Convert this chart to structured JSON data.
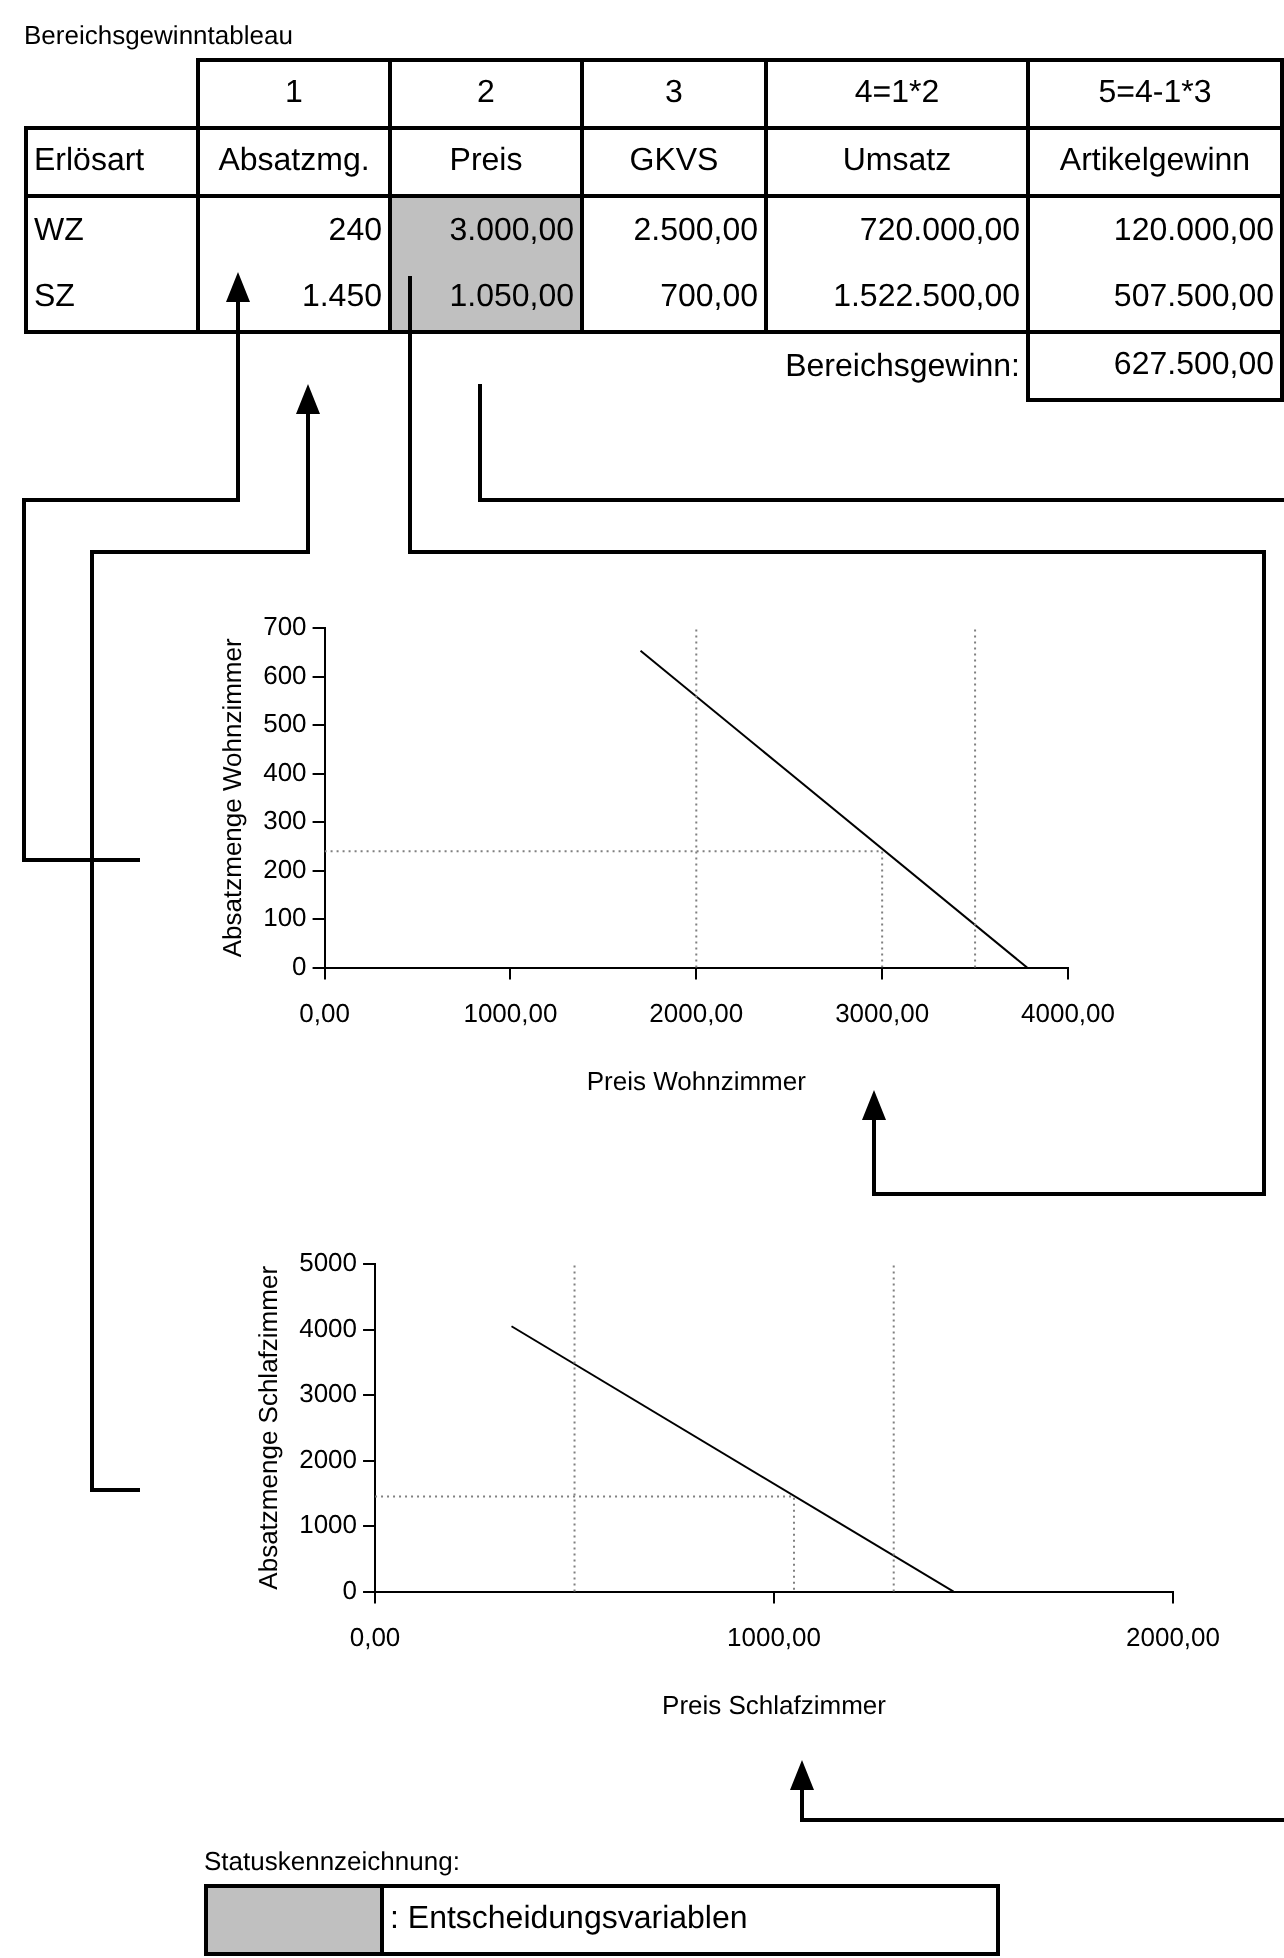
{
  "chart_data": [
    {
      "type": "other",
      "title": "Bereichsgewinntableau",
      "categories": [
        null,
        "1",
        "2",
        "3",
        "4=1*2",
        "5=4-1*3"
      ],
      "cell_labels": [
        [
          "Erlösart",
          "Absatzmg.",
          "Preis",
          "GKVS",
          "Umsatz",
          "Artikelgewinn"
        ],
        [
          "WZ",
          "240",
          "3.000,00",
          "2.500,00",
          "720.000,00",
          "120.000,00"
        ],
        [
          "SZ",
          "1.450",
          "1.050,00",
          "700,00",
          "1.522.500,00",
          "507.500,00"
        ]
      ],
      "colors": [
        null,
        null,
        "#c0c0c0",
        null,
        null,
        null
      ],
      "annotations": [
        "Bereichsgewinn:",
        "627.500,00"
      ]
    },
    {
      "type": "line",
      "xlabel": "Preis Wohnzimmer",
      "ylabel": "Absatzmenge Wohnzimmer",
      "xlim": [
        0,
        4000
      ],
      "xticks": [
        {
          "value": 0,
          "label": "0,00"
        },
        {
          "value": 1000,
          "label": "1000,00"
        },
        {
          "value": 2000,
          "label": "2000,00"
        },
        {
          "value": 3000,
          "label": "3000,00"
        },
        {
          "value": 4000,
          "label": "4000,00"
        }
      ],
      "ylim": [
        0,
        700
      ],
      "yticks": [
        0,
        100,
        200,
        300,
        400,
        500,
        600,
        700
      ],
      "grid": false,
      "legend": false,
      "marker": "none",
      "series": [
        {
          "color": "#000000",
          "x": [
            1700,
            3780
          ],
          "values": [
            653,
            0
          ]
        },
        {
          "color": "#808080",
          "line_style": "dotted",
          "x": [
            0,
            3000,
            3000
          ],
          "values": [
            240,
            240,
            0
          ]
        }
      ],
      "ref_lines": [
        {
          "axis": "x",
          "value": 2000,
          "color": "#808080",
          "line_style": "dotted"
        },
        {
          "axis": "x",
          "value": 3500,
          "color": "#808080",
          "line_style": "dotted"
        }
      ]
    },
    {
      "type": "line",
      "xlabel": "Preis Schlafzimmer",
      "ylabel": "Absatzmenge Schlafzimmer",
      "xlim": [
        0,
        2000
      ],
      "xticks": [
        {
          "value": 0,
          "label": "0,00"
        },
        {
          "value": 1000,
          "label": "1000,00"
        },
        {
          "value": 2000,
          "label": "2000,00"
        }
      ],
      "ylim": [
        0,
        5000
      ],
      "yticks": [
        0,
        1000,
        2000,
        3000,
        4000,
        5000
      ],
      "grid": false,
      "legend": false,
      "marker": "none",
      "series": [
        {
          "color": "#000000",
          "x": [
            342,
            1450
          ],
          "values": [
            4050,
            0
          ]
        },
        {
          "color": "#808080",
          "line_style": "dotted",
          "x": [
            0,
            1050,
            1050
          ],
          "values": [
            1450,
            1450,
            0
          ]
        }
      ],
      "ref_lines": [
        {
          "axis": "x",
          "value": 500,
          "color": "#808080",
          "line_style": "dotted"
        },
        {
          "axis": "x",
          "value": 1300,
          "color": "#808080",
          "line_style": "dotted"
        }
      ]
    },
    {
      "type": "other",
      "title": "Statuskennzeichnung:",
      "categories": [
        ": Entscheidungsvariablen"
      ],
      "colors": [
        "#c0c0c0"
      ]
    }
  ]
}
